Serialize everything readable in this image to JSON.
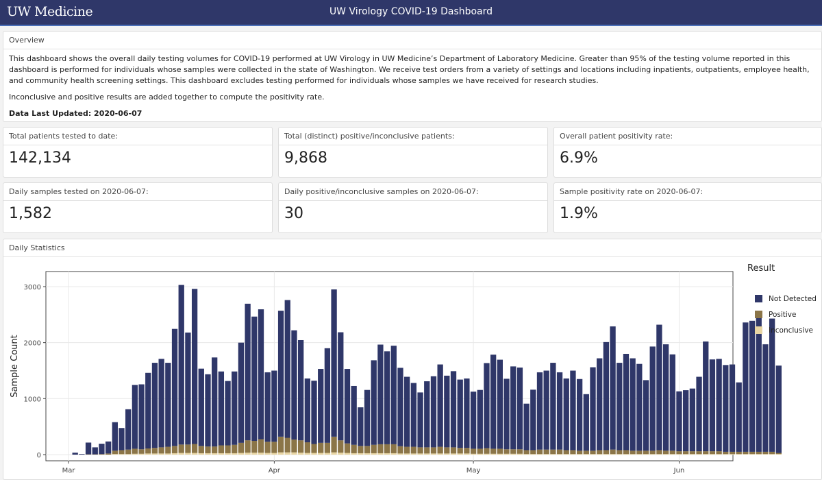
{
  "header": {
    "brand": "UW Medicine",
    "title": "UW Virology COVID-19 Dashboard"
  },
  "overview": {
    "heading": "Overview",
    "paragraph1": "This dashboard shows the overall daily testing volumes for COVID-19 performed at UW Virology in UW Medicine’s Department of Laboratory Medicine. Greater than 95% of the testing volume reported in this dashboard is performed for individuals whose samples were collected in the state of Washington. We receive test orders from a variety of settings and locations including inpatients, outpatients, employee health, and community health screening settings. This dashboard excludes testing performed for individuals whose samples we have received for research studies.",
    "paragraph2": "Inconclusive and positive results are added together to compute the positivity rate.",
    "updated": "Data Last Updated: 2020-06-07"
  },
  "stats": [
    {
      "label": "Total patients tested to date:",
      "value": "142,134"
    },
    {
      "label": "Total (distinct) positive/inconclusive patients:",
      "value": "9,868"
    },
    {
      "label": "Overall patient positivity rate:",
      "value": "6.9%"
    },
    {
      "label": "Daily samples tested on 2020-06-07:",
      "value": "1,582"
    },
    {
      "label": "Daily positive/inconclusive samples on 2020-06-07:",
      "value": "30"
    },
    {
      "label": "Sample positivity rate on 2020-06-07:",
      "value": "1.9%"
    }
  ],
  "daily": {
    "heading": "Daily Statistics"
  },
  "chart_data": {
    "type": "bar",
    "stacked": true,
    "xlabel": "",
    "ylabel": "Sample Count",
    "ylim": [
      0,
      3000
    ],
    "yticks": [
      0,
      1000,
      2000,
      3000
    ],
    "grid": true,
    "x_tick_labels": [
      {
        "label": "Mar",
        "day": 0
      },
      {
        "label": "Apr",
        "day": 31
      },
      {
        "label": "May",
        "day": 61
      },
      {
        "label": "Jun",
        "day": 92
      }
    ],
    "first_day_offset": 1,
    "legend": {
      "title": "Result",
      "position": "right"
    },
    "series": [
      {
        "name": "Not Detected",
        "color": "#2f3769",
        "values": [
          35,
          10,
          210,
          125,
          185,
          215,
          510,
          395,
          720,
          1140,
          1160,
          1350,
          1520,
          1580,
          1500,
          2090,
          2850,
          2000,
          2770,
          1380,
          1290,
          1590,
          1320,
          1150,
          1310,
          1790,
          2440,
          2220,
          2320,
          1240,
          1270,
          2250,
          2460,
          1950,
          1790,
          1140,
          1130,
          1320,
          1690,
          2630,
          1930,
          1330,
          1050,
          690,
          1000,
          1510,
          1780,
          1660,
          1760,
          1400,
          1250,
          1140,
          980,
          1180,
          1270,
          1470,
          1280,
          1360,
          1220,
          1240,
          1020,
          1050,
          1520,
          1680,
          1590,
          1260,
          1480,
          1460,
          830,
          1080,
          1380,
          1410,
          1550,
          1380,
          1280,
          1420,
          1280,
          1010,
          1490,
          1640,
          1930,
          2200,
          1560,
          1720,
          1650,
          1550,
          1260,
          1860,
          2240,
          1900,
          1720,
          1070,
          1090,
          1120,
          1330,
          1960,
          1640,
          1650,
          1550,
          1560,
          1240,
          2310,
          2340,
          2500,
          1920,
          2380,
          1560
        ]
      },
      {
        "name": "Positive",
        "color": "#8b7548",
        "values": [
          0,
          0,
          5,
          5,
          10,
          20,
          60,
          70,
          80,
          90,
          80,
          90,
          100,
          110,
          120,
          130,
          150,
          150,
          160,
          130,
          120,
          120,
          140,
          140,
          150,
          180,
          220,
          210,
          240,
          200,
          200,
          280,
          260,
          230,
          220,
          190,
          160,
          180,
          180,
          280,
          220,
          170,
          150,
          130,
          130,
          150,
          160,
          160,
          160,
          130,
          120,
          120,
          110,
          110,
          110,
          120,
          110,
          110,
          100,
          100,
          90,
          90,
          100,
          90,
          90,
          80,
          80,
          80,
          70,
          70,
          80,
          80,
          80,
          80,
          70,
          70,
          60,
          60,
          60,
          70,
          70,
          80,
          70,
          70,
          60,
          60,
          60,
          60,
          70,
          60,
          60,
          50,
          50,
          50,
          50,
          50,
          50,
          50,
          40,
          40,
          40,
          40,
          40,
          40,
          40,
          40,
          20
        ]
      },
      {
        "name": "Inconclusive",
        "color": "#e8d5a3",
        "values": [
          0,
          0,
          0,
          0,
          0,
          0,
          10,
          10,
          10,
          15,
          15,
          20,
          20,
          20,
          20,
          25,
          30,
          30,
          30,
          25,
          25,
          25,
          25,
          25,
          25,
          30,
          35,
          35,
          35,
          30,
          30,
          40,
          40,
          40,
          35,
          30,
          30,
          30,
          30,
          40,
          35,
          30,
          25,
          25,
          25,
          25,
          25,
          25,
          25,
          20,
          20,
          20,
          20,
          20,
          20,
          20,
          20,
          20,
          20,
          20,
          15,
          15,
          15,
          15,
          15,
          15,
          15,
          15,
          10,
          10,
          10,
          10,
          10,
          10,
          10,
          10,
          10,
          10,
          10,
          10,
          10,
          10,
          10,
          10,
          10,
          10,
          10,
          10,
          10,
          10,
          10,
          10,
          10,
          10,
          10,
          10,
          10,
          10,
          10,
          10,
          10,
          10,
          10,
          10,
          10,
          10,
          10
        ]
      }
    ]
  }
}
